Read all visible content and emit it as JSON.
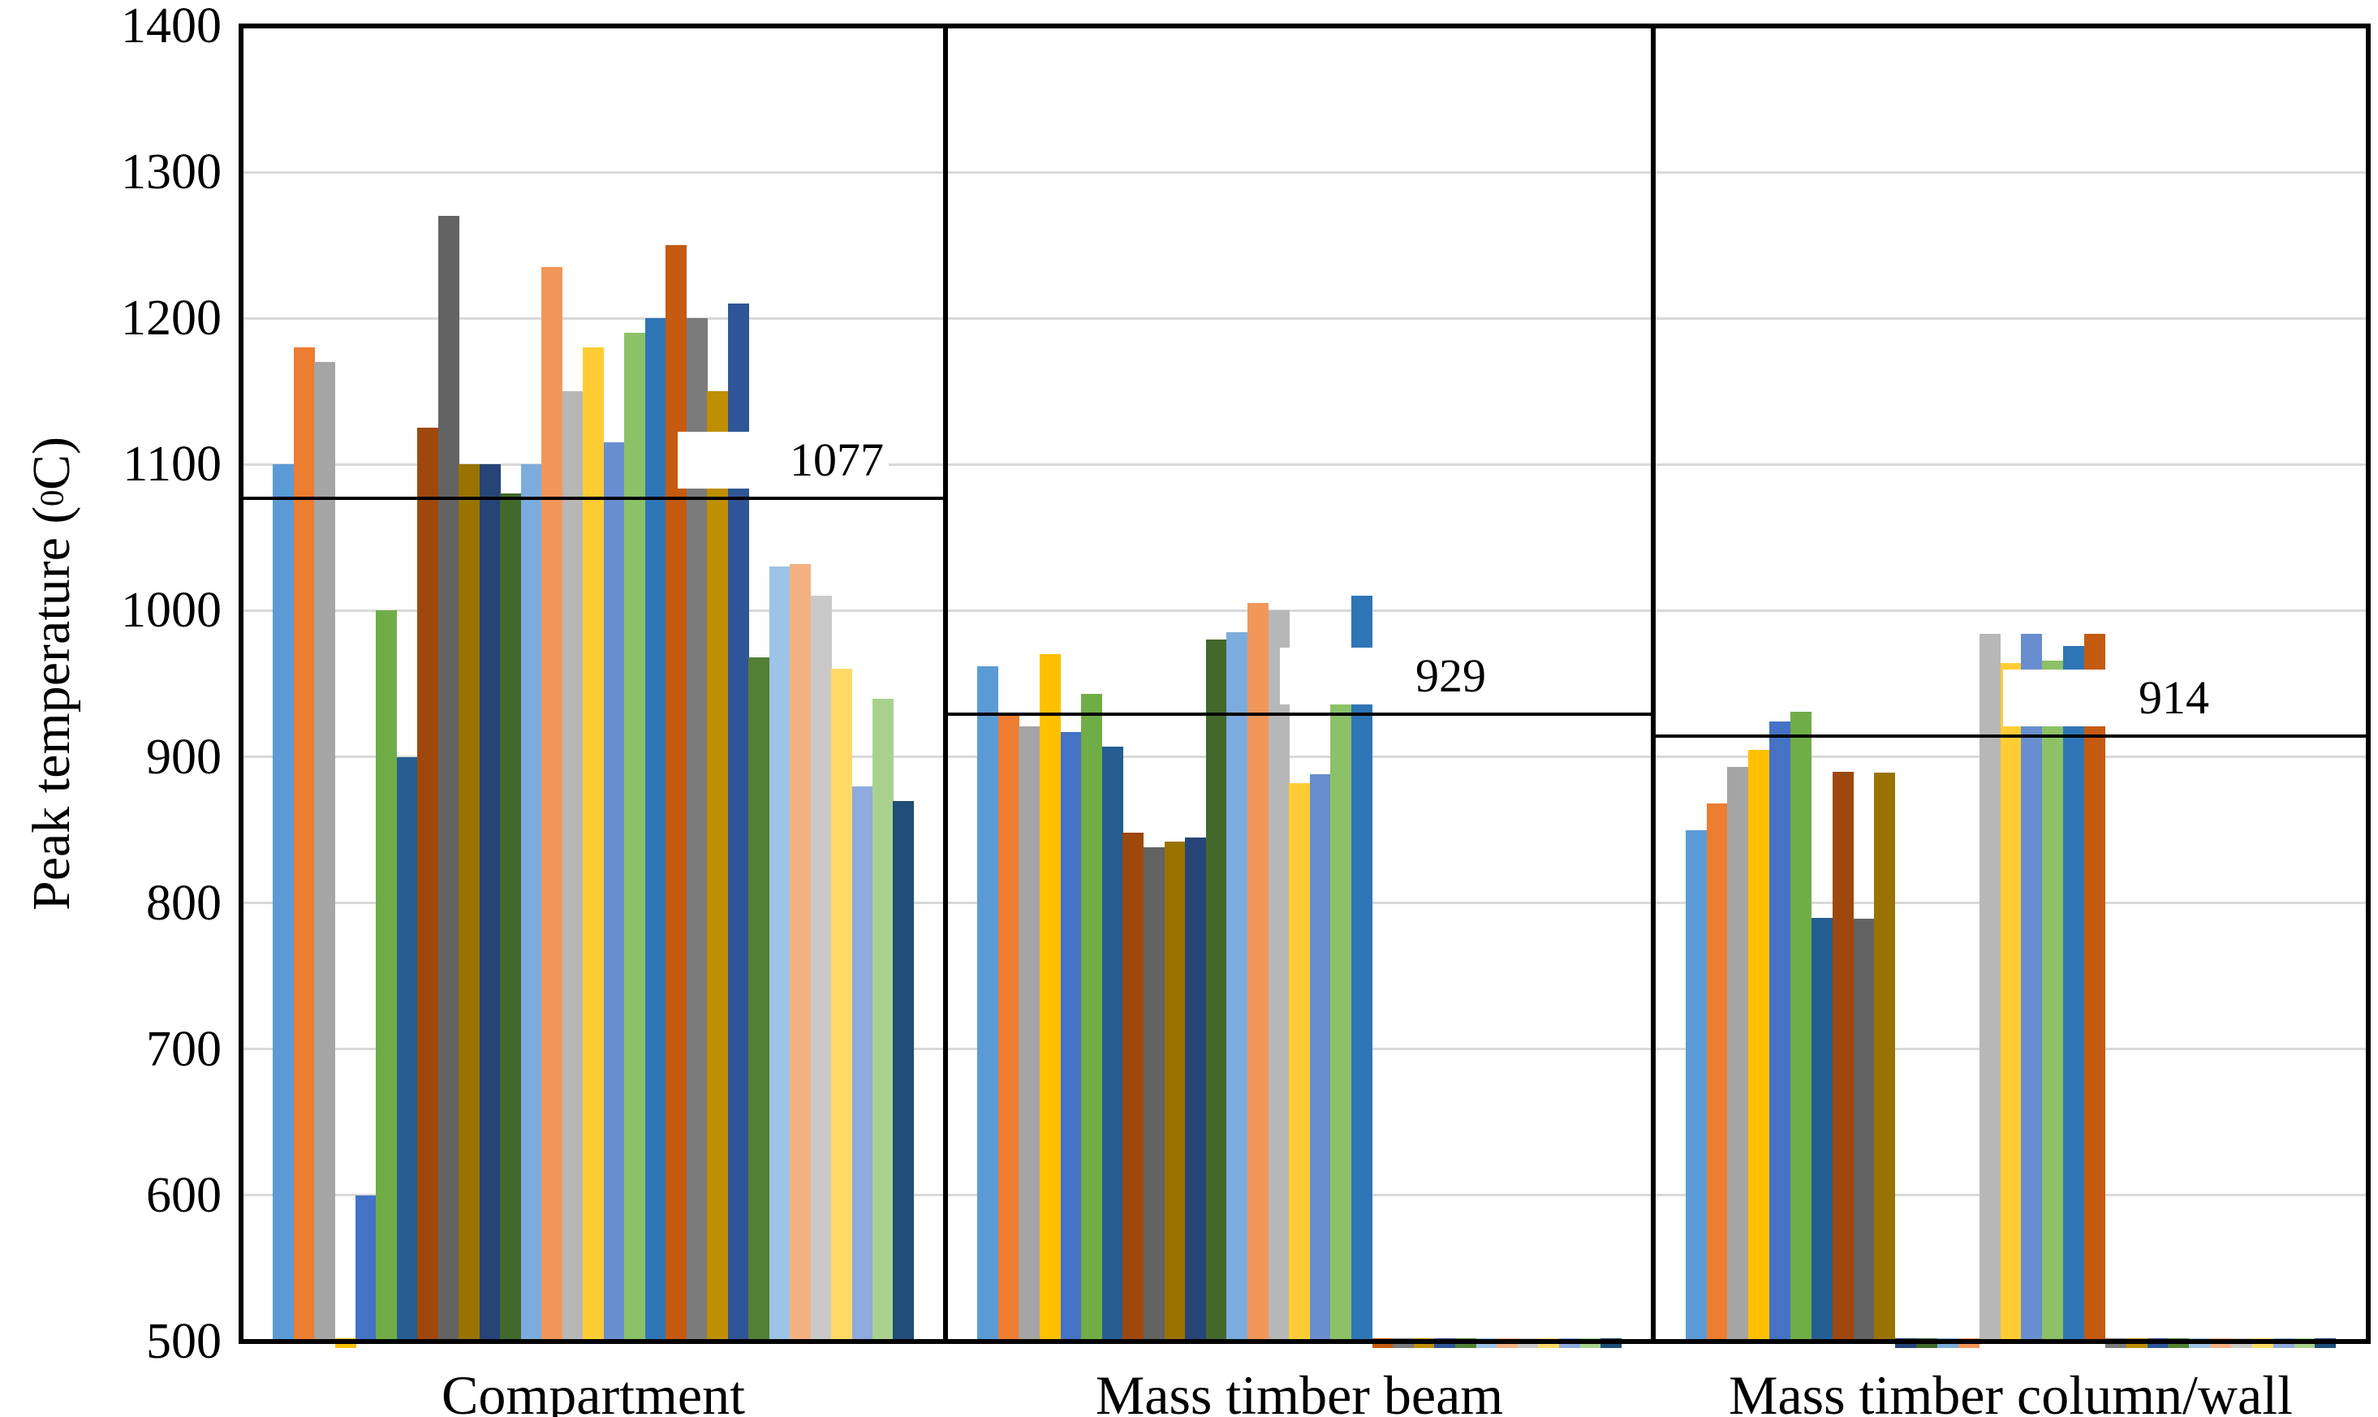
{
  "chart_data": {
    "type": "bar",
    "title": "",
    "ylabel": "Peak temperature (0C)",
    "ylabel_parts": {
      "prefix": "Peak temperature (",
      "sup": "0",
      "suffix": "C)"
    },
    "ylim": [
      500,
      1400
    ],
    "ytick_interval": 100,
    "yticks": [
      "500",
      "600",
      "700",
      "800",
      "900",
      "1000",
      "1100",
      "1200",
      "1300",
      "1400"
    ],
    "grid": "horizontal",
    "gridline_color": "#D9D9D9",
    "legend": "none",
    "categories": [
      "Compartment",
      "Mass timber beam",
      "Mass timber column/wall"
    ],
    "reference_lines": [
      {
        "category": "Compartment",
        "value": 1077,
        "label": "1077"
      },
      {
        "category": "Mass timber beam",
        "value": 929,
        "label": "929"
      },
      {
        "category": "Mass timber column/wall",
        "value": 914,
        "label": "914"
      }
    ],
    "baseline_note": "values of ~502 render as tiny slivers at the 500 baseline",
    "series": [
      {
        "color": "#5B9BD5",
        "values": [
          1100,
          962,
          850
        ]
      },
      {
        "color": "#ED7D31",
        "values": [
          1180,
          928,
          868
        ]
      },
      {
        "color": "#A5A5A5",
        "values": [
          1170,
          921,
          893
        ]
      },
      {
        "color": "#FFC000",
        "values": [
          502,
          970,
          905
        ]
      },
      {
        "color": "#4472C4",
        "values": [
          600,
          917,
          924
        ]
      },
      {
        "color": "#70AD47",
        "values": [
          1000,
          943,
          931
        ]
      },
      {
        "color": "#255E91",
        "values": [
          900,
          907,
          790
        ]
      },
      {
        "color": "#9E480E",
        "values": [
          1125,
          848,
          890
        ]
      },
      {
        "color": "#636363",
        "values": [
          1270,
          838,
          789
        ]
      },
      {
        "color": "#997300",
        "values": [
          1100,
          842,
          889
        ]
      },
      {
        "color": "#264478",
        "values": [
          1100,
          845,
          502
        ]
      },
      {
        "color": "#43682B",
        "values": [
          1080,
          980,
          502
        ]
      },
      {
        "color": "#7CACDD",
        "values": [
          1100,
          985,
          502
        ]
      },
      {
        "color": "#F1975A",
        "values": [
          1235,
          1005,
          502
        ]
      },
      {
        "color": "#B7B7B7",
        "values": [
          1150,
          1000,
          984
        ]
      },
      {
        "color": "#FFCD33",
        "values": [
          1180,
          882,
          964
        ]
      },
      {
        "color": "#698ED0",
        "values": [
          1115,
          888,
          984
        ]
      },
      {
        "color": "#8CC168",
        "values": [
          1190,
          950,
          966
        ]
      },
      {
        "color": "#2E75B6",
        "values": [
          1200,
          1010,
          976
        ]
      },
      {
        "color": "#C55A11",
        "values": [
          1250,
          502,
          984
        ]
      },
      {
        "color": "#7B7B7B",
        "values": [
          1200,
          502,
          502
        ]
      },
      {
        "color": "#BF8F00",
        "values": [
          1150,
          502,
          502
        ]
      },
      {
        "color": "#2F5597",
        "values": [
          1210,
          502,
          502
        ]
      },
      {
        "color": "#538135",
        "values": [
          968,
          502,
          502
        ]
      },
      {
        "color": "#9DC3E6",
        "values": [
          1030,
          502,
          502
        ]
      },
      {
        "color": "#F4B183",
        "values": [
          1032,
          502,
          502
        ]
      },
      {
        "color": "#C9C9C9",
        "values": [
          1010,
          502,
          502
        ]
      },
      {
        "color": "#FFD966",
        "values": [
          960,
          502,
          502
        ]
      },
      {
        "color": "#8FAADC",
        "values": [
          880,
          502,
          502
        ]
      },
      {
        "color": "#A9D18E",
        "values": [
          940,
          502,
          502
        ]
      },
      {
        "color": "#1F4E79",
        "values": [
          870,
          502,
          502
        ]
      }
    ]
  }
}
